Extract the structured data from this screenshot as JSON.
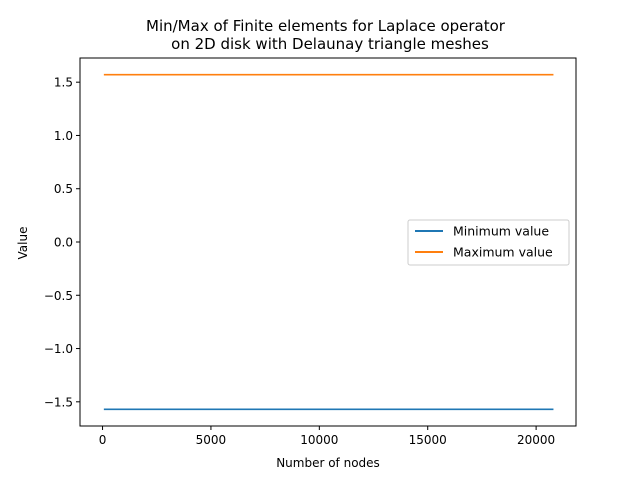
{
  "chart_data": {
    "type": "line",
    "title_line1": "Min/Max of Finite elements for Laplace operator",
    "title_line2": "on 2D disk with Delaunay triangle meshes",
    "xlabel": "Number of nodes",
    "ylabel": "Value",
    "xlim": [
      -1040,
      21840
    ],
    "ylim": [
      -1.727,
      1.727
    ],
    "xticks": [
      0,
      5000,
      10000,
      15000,
      20000
    ],
    "yticks": [
      -1.5,
      -1.0,
      -0.5,
      0.0,
      0.5,
      1.0,
      1.5
    ],
    "grid": false,
    "legend_placement": "center-right",
    "series": [
      {
        "name": "Minimum value",
        "color": "#1f77b4",
        "x": [
          60,
          1000,
          2500,
          5000,
          7500,
          10000,
          12500,
          15000,
          17500,
          20000,
          20800
        ],
        "y": [
          -1.5708,
          -1.5708,
          -1.5708,
          -1.5708,
          -1.5708,
          -1.5708,
          -1.5708,
          -1.5708,
          -1.5708,
          -1.5708,
          -1.5708
        ]
      },
      {
        "name": "Maximum value",
        "color": "#ff7f0e",
        "x": [
          60,
          1000,
          2500,
          5000,
          7500,
          10000,
          12500,
          15000,
          17500,
          20000,
          20800
        ],
        "y": [
          1.5708,
          1.5708,
          1.5708,
          1.5708,
          1.5708,
          1.5708,
          1.5708,
          1.5708,
          1.5708,
          1.5708,
          1.5708
        ]
      }
    ]
  }
}
